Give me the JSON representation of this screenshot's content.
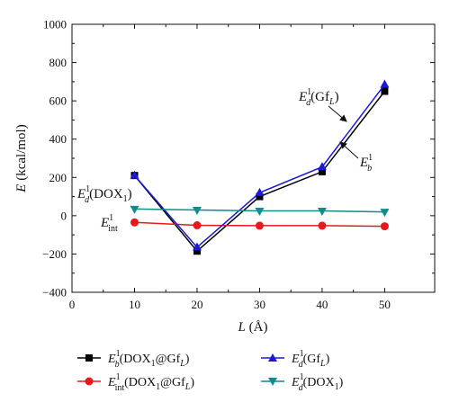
{
  "chart_data": {
    "type": "line",
    "title": "",
    "xlabel": "L (Å)",
    "ylabel": "E (kcal/mol)",
    "xlim": [
      0,
      58
    ],
    "ylim": [
      -400,
      1000
    ],
    "xticks": [
      0,
      10,
      20,
      30,
      40,
      50
    ],
    "yticks": [
      -400,
      -200,
      0,
      200,
      400,
      600,
      800,
      1000
    ],
    "grid": false,
    "legend_position": "bottom",
    "x": [
      10,
      20,
      30,
      40,
      50
    ],
    "series": [
      {
        "name": "E_b^1(DOX1@GfL)",
        "color": "#000000",
        "marker": "square",
        "values": [
          210,
          -185,
          100,
          230,
          650
        ]
      },
      {
        "name": "E_int^1(DOX1@GfL)",
        "color": "#e8191c",
        "marker": "circle",
        "values": [
          -35,
          -50,
          -52,
          -52,
          -55
        ]
      },
      {
        "name": "E_d^1(GfL)",
        "color": "#1a1ad6",
        "marker": "triangle-up",
        "values": [
          210,
          -165,
          120,
          255,
          685
        ]
      },
      {
        "name": "E_d^1(DOX1)",
        "color": "#118b8b",
        "marker": "triangle-down",
        "values": [
          35,
          30,
          25,
          25,
          20
        ]
      }
    ],
    "annotations": [
      {
        "label": "E_d^1(GfL)",
        "points_to": "E_d^1(GfL) series near L=47"
      },
      {
        "label": "E_b^1",
        "points_to": "E_b^1 series near L=45"
      },
      {
        "label": "E_d^1(DOX1)",
        "points_to": "E_d^1(DOX1) series at L=10"
      },
      {
        "label": "E_int^1",
        "points_to": "E_int^1 series at L=10"
      }
    ]
  }
}
